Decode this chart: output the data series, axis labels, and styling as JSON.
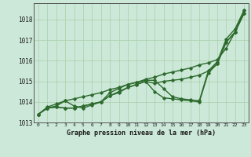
{
  "title": "Graphe pression niveau de la mer (hPa)",
  "bg_color": "#cce8d8",
  "line_color": "#2d6a2d",
  "grid_color": "#aacfaa",
  "ylim": [
    1013.0,
    1018.8
  ],
  "xlim": [
    -0.5,
    23.5
  ],
  "yticks": [
    1013,
    1014,
    1015,
    1016,
    1017,
    1018
  ],
  "xticks": [
    0,
    1,
    2,
    3,
    4,
    5,
    6,
    7,
    8,
    9,
    10,
    11,
    12,
    13,
    14,
    15,
    16,
    17,
    18,
    19,
    20,
    21,
    22,
    23
  ],
  "series": [
    [
      1013.4,
      1013.7,
      1013.8,
      1014.05,
      1013.8,
      1013.7,
      1013.85,
      1014.0,
      1014.45,
      1014.65,
      1014.85,
      1014.95,
      1015.05,
      1015.05,
      1014.65,
      1014.25,
      1014.15,
      1014.1,
      1014.05,
      1015.5,
      1015.95,
      1017.05,
      1017.55,
      1018.45
    ],
    [
      1013.4,
      1013.7,
      1013.75,
      1013.7,
      1013.7,
      1013.8,
      1013.9,
      1014.0,
      1014.3,
      1014.5,
      1014.7,
      1014.85,
      1015.0,
      1014.5,
      1014.2,
      1014.15,
      1014.1,
      1014.05,
      1014.0,
      1015.4,
      1015.85,
      1016.9,
      1017.4,
      1018.3
    ],
    [
      1013.4,
      1013.7,
      1013.75,
      1013.7,
      1013.7,
      1013.8,
      1013.9,
      1014.0,
      1014.3,
      1014.45,
      1014.7,
      1014.85,
      1015.0,
      1014.9,
      1015.0,
      1015.05,
      1015.1,
      1015.2,
      1015.3,
      1015.5,
      1015.85,
      1016.9,
      1017.4,
      1018.3
    ],
    [
      1013.4,
      1013.75,
      1013.9,
      1014.05,
      1014.15,
      1014.25,
      1014.35,
      1014.45,
      1014.6,
      1014.7,
      1014.85,
      1014.95,
      1015.1,
      1015.2,
      1015.35,
      1015.45,
      1015.55,
      1015.65,
      1015.8,
      1015.9,
      1016.05,
      1016.6,
      1017.4,
      1018.45
    ]
  ]
}
